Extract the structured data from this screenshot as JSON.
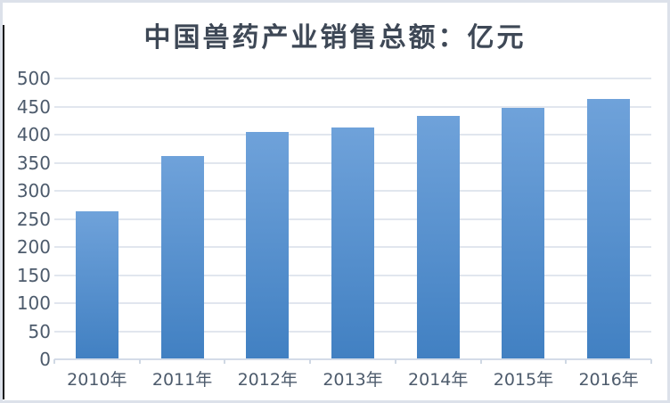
{
  "chart_data": {
    "type": "bar",
    "title": "中国兽药产业销售总额：亿元",
    "categories": [
      "2010年",
      "2011年",
      "2012年",
      "2013年",
      "2014年",
      "2015年",
      "2016年"
    ],
    "values": [
      263,
      362,
      404,
      412,
      433,
      448,
      464
    ],
    "xlabel": "",
    "ylabel": "",
    "ylim": [
      0,
      500
    ],
    "ytick_step": 50,
    "ytick_labels": [
      "0",
      "50",
      "100",
      "150",
      "200",
      "250",
      "300",
      "350",
      "400",
      "450",
      "500"
    ],
    "grid": true,
    "legend_position": "none",
    "colors": {
      "bar_top": "#6fa2da",
      "bar_bottom": "#4180c2",
      "gridline": "#e1e6ee",
      "axis_line": "#d4dce8",
      "tick_mark": "#cfd8e4",
      "tick_label": "#4d5b6c",
      "title": "#3e4856",
      "border": "#dce1ea",
      "left_edge": "#161616",
      "background": "#ffffff"
    }
  }
}
